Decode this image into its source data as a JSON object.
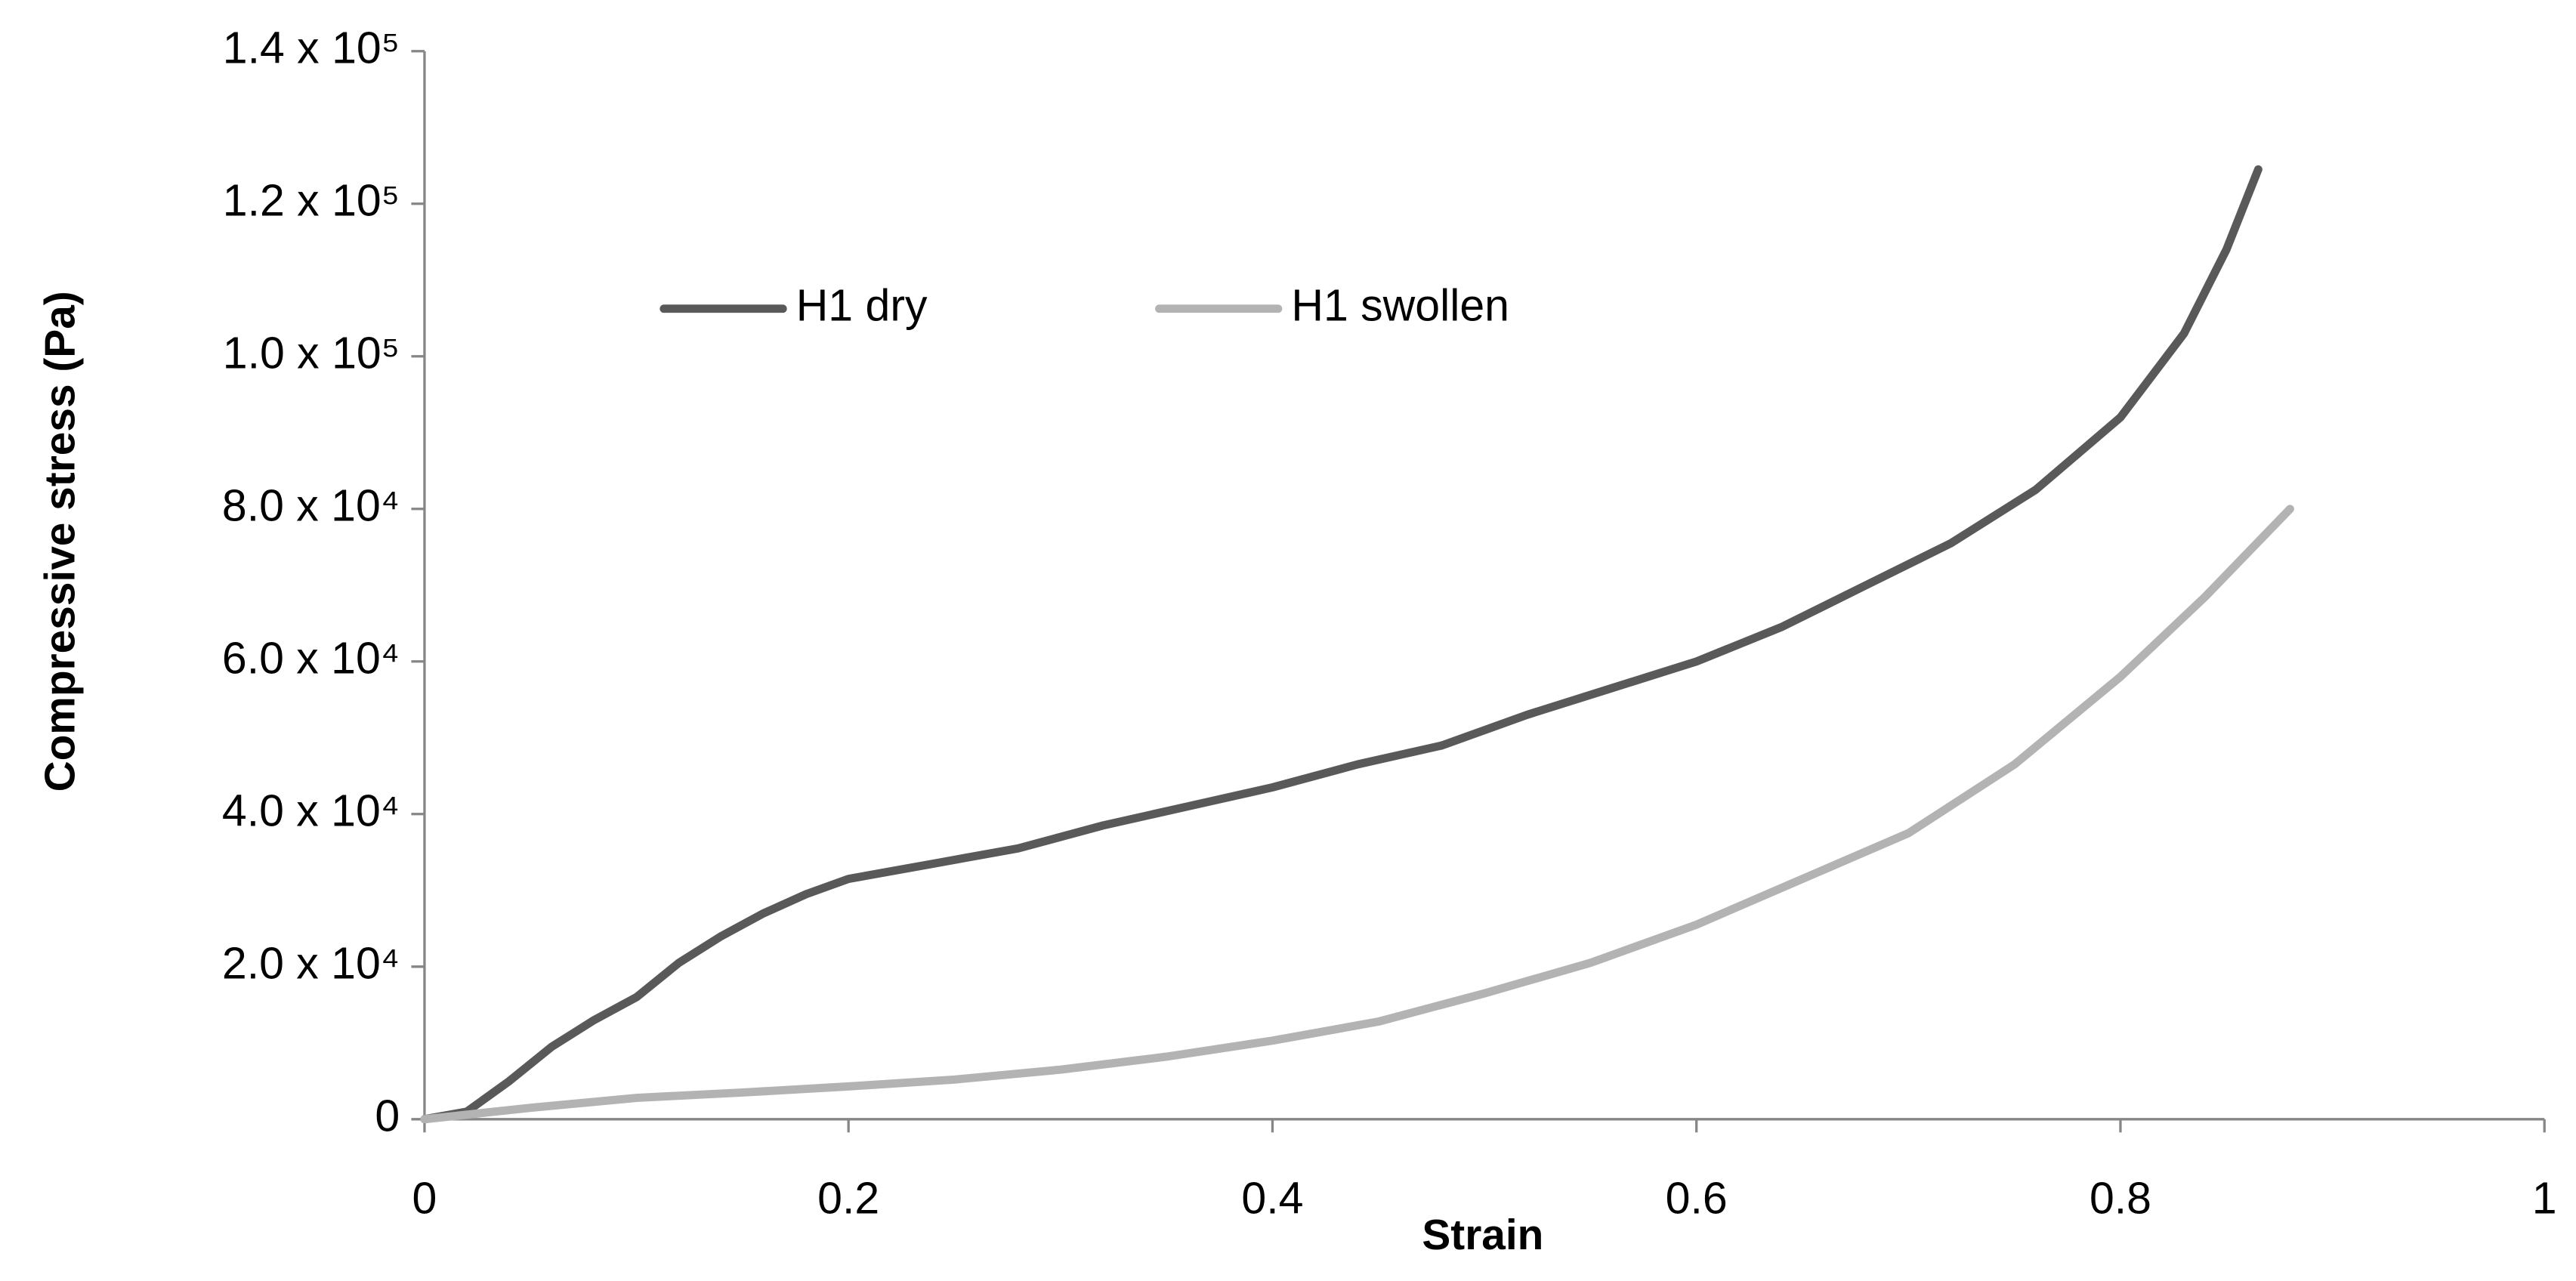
{
  "chart_data": {
    "type": "line",
    "x_label": "Strain",
    "y_label": "Compressive stress (Pa)",
    "xlim": [
      0,
      1
    ],
    "xticks": [
      0,
      0.2,
      0.4,
      0.6,
      0.8,
      1
    ],
    "ylim": [
      0,
      140000
    ],
    "yticks": [
      0,
      {
        "value": 20000,
        "label": "2.0 x 10⁴"
      },
      {
        "value": 40000,
        "label": "4.0 x 10⁴"
      },
      {
        "value": 60000,
        "label": "6.0 x 10⁴"
      },
      {
        "value": 80000,
        "label": "8.0 x 10⁴"
      },
      {
        "value": 100000,
        "label": "1.0 x 10⁵"
      },
      {
        "value": 120000,
        "label": "1.2 x 10⁵"
      },
      {
        "value": 140000,
        "label": "1.4 x 10⁵"
      }
    ],
    "grid": false,
    "legend": "upper left",
    "series": [
      {
        "name": "H1 dry",
        "color": "#595959",
        "x": [
          0,
          0.02,
          0.04,
          0.06,
          0.08,
          0.1,
          0.12,
          0.14,
          0.16,
          0.18,
          0.2,
          0.24,
          0.28,
          0.32,
          0.36,
          0.4,
          0.44,
          0.48,
          0.52,
          0.56,
          0.6,
          0.64,
          0.68,
          0.72,
          0.76,
          0.8,
          0.83,
          0.85,
          0.865
        ],
        "values": [
          0,
          1000,
          5000,
          9500,
          13000,
          16000,
          20500,
          24000,
          27000,
          29500,
          31500,
          33500,
          35500,
          38500,
          41000,
          43500,
          46500,
          49000,
          53000,
          56500,
          60000,
          64500,
          70000,
          75500,
          82500,
          92000,
          103000,
          114000,
          124500
        ]
      },
      {
        "name": "H1 swollen",
        "color": "#b3b3b3",
        "x": [
          0,
          0.05,
          0.1,
          0.15,
          0.2,
          0.25,
          0.3,
          0.35,
          0.4,
          0.45,
          0.5,
          0.55,
          0.6,
          0.65,
          0.7,
          0.75,
          0.8,
          0.84,
          0.88
        ],
        "values": [
          0,
          1500,
          2800,
          3500,
          4300,
          5200,
          6500,
          8200,
          10300,
          12800,
          16500,
          20500,
          25500,
          31500,
          37500,
          46500,
          58000,
          68500,
          80000
        ]
      }
    ]
  }
}
